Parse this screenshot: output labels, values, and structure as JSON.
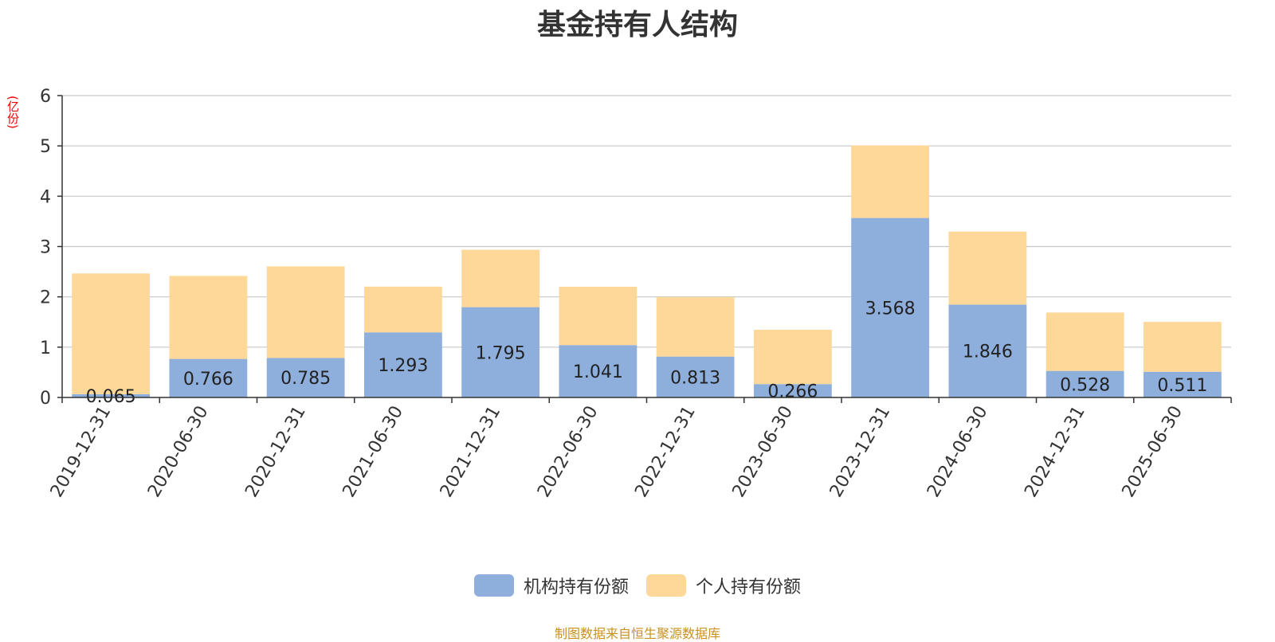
{
  "chart_data": {
    "type": "bar",
    "stacked": true,
    "title": "基金持有人结构",
    "ylabel": "(亿份)",
    "ylim": [
      0,
      6
    ],
    "yticks": [
      0,
      1,
      2,
      3,
      4,
      5,
      6
    ],
    "grid": true,
    "legend_position": "bottom-center",
    "categories": [
      "2019-12-31",
      "2020-06-30",
      "2020-12-31",
      "2021-06-30",
      "2021-12-31",
      "2022-06-30",
      "2022-12-31",
      "2023-06-30",
      "2023-12-31",
      "2024-06-30",
      "2024-12-31",
      "2025-06-30"
    ],
    "series": [
      {
        "name": "机构持有份额",
        "color": "#8eaedc",
        "values": [
          0.065,
          0.766,
          0.785,
          1.293,
          1.795,
          1.041,
          0.813,
          0.266,
          3.568,
          1.846,
          0.528,
          0.511
        ],
        "labels": [
          "0.065",
          "0.766",
          "0.785",
          "1.293",
          "1.795",
          "1.041",
          "0.813",
          "0.266",
          "3.568",
          "1.846",
          "0.528",
          "0.511"
        ]
      },
      {
        "name": "个人持有份额",
        "color": "#fed899",
        "values": [
          2.4,
          1.65,
          1.82,
          0.91,
          1.14,
          1.16,
          1.18,
          1.08,
          1.44,
          1.45,
          1.16,
          0.99
        ]
      }
    ]
  },
  "source": {
    "text": "制图数据来自恒生聚源数据库",
    "color": "#c8911e"
  }
}
